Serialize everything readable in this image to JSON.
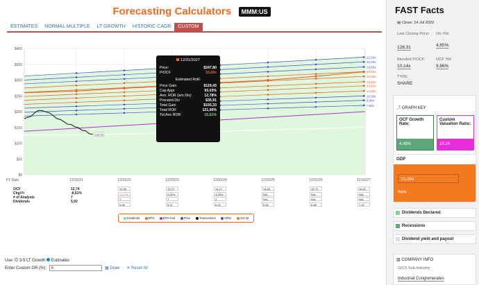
{
  "header": {
    "title": "Forecasting Calculators",
    "ticker": "MMM:US"
  },
  "tabs": [
    "ESTIMATES",
    "NORMAL MULTIPLE",
    "LT GROWTH",
    "HISTORIC CAGR",
    "CUSTOM"
  ],
  "active_tab": "CUSTOM",
  "chart_data": {
    "type": "area",
    "y_ticks": [
      "$400",
      "$350",
      "$300",
      "$250",
      "$200",
      "$150",
      "$100",
      "$50",
      "$0"
    ],
    "ylim": [
      0,
      400
    ],
    "x_ticks": [
      "FY Date",
      "12/31/21",
      "12/31/22",
      "12/31/23",
      "12/31/24",
      "12/31/25",
      "12/31/26",
      "12/31/27"
    ],
    "right_labels": [
      "22,50x",
      "21,00x",
      "19,50x",
      "18,00x",
      "16,50x",
      "15,00x",
      "13,50x",
      "12,00x",
      "10,50x",
      "9,00x",
      "7,50x"
    ],
    "right_colors": [
      "#3a4fd6",
      "#3a4fd6",
      "#3a4fd6",
      "#e85c1e",
      "#e85c1e",
      "#e85c1e",
      "#e85c1e",
      "#e85c1e",
      "#3a4fd6",
      "#3a4fd6",
      "#3a4fd6"
    ],
    "current_price_label": "128.31",
    "band_start": [
      313,
      300,
      288,
      275,
      261,
      248,
      236,
      223,
      211,
      198,
      186
    ],
    "band_end": [
      373,
      358,
      342,
      327,
      312,
      295,
      282,
      266,
      250,
      236,
      220
    ],
    "band_fills": [
      "#dff7dc",
      "#c9f3c3",
      "#b3edaa",
      "#ffe0cf",
      "#ffd0b8",
      "#5aa879",
      "#5aa879",
      "#5aa879",
      "#5aa879",
      "#5aa879",
      "#5aa879"
    ],
    "orange_line": [
      265,
      274,
      282,
      292,
      300,
      312,
      326
    ],
    "price": [
      178,
      182,
      186,
      198,
      204,
      203,
      199,
      196,
      187,
      178,
      175,
      168,
      160,
      159,
      152,
      149,
      141,
      139,
      130,
      128
    ],
    "dividends": [
      126,
      129,
      133,
      138,
      142,
      146,
      151
    ]
  },
  "table": {
    "rows": [
      "OCF",
      "Chg/Yr",
      "# of Analysts",
      "Dividends"
    ],
    "cols": [
      [
        "12,74",
        "-8,61%",
        "7",
        "5,92"
      ],
      [
        "12.56",
        "-1,17%",
        "7",
        "5.96"
      ],
      [
        "13.72",
        "9,00%",
        "7",
        "6.22"
      ],
      [
        "14.27",
        "4,03%",
        "2",
        "6.24"
      ],
      [
        "14.65",
        "N/A",
        "N/A",
        "6.55"
      ],
      [
        "15.73",
        "N/A",
        "N/A",
        "6.88"
      ],
      [
        "16.52",
        "N/A",
        "N/A",
        "7.22"
      ]
    ]
  },
  "legend": [
    "Dividends",
    "EPS",
    "EPS-Ovd",
    "Price",
    "Transactions",
    "Other",
    "Cal Qt"
  ],
  "legend_colors": [
    "#7bd98b",
    "#f26b21",
    "#ad2bd6",
    "#3a4fd6",
    "#111111",
    "#3a4fd6",
    "#f26b21"
  ],
  "tooltip": {
    "date": "12/31/2027",
    "price_label": "Price:",
    "price": "$247,80",
    "pocf_label": "P/OCF",
    "pocf": "15,00x",
    "ror_header": "Estimated RoR:",
    "rows": [
      [
        "Price Gain",
        "$119,43"
      ],
      [
        "Cap Appr",
        "93,03%"
      ],
      [
        "Ann. ROR (w/o Div)",
        "12,78%"
      ],
      [
        "Prorated Div",
        "$35,91"
      ],
      [
        "Total Gain",
        "$155,33"
      ],
      [
        "Total ROR",
        "121,00%"
      ],
      [
        "Tot Ann ROR",
        "15,61%"
      ]
    ]
  },
  "controls": {
    "use_label": "Use:",
    "opt1": "3-5 LT Growth",
    "opt2": "Estimates",
    "custom_label": "Enter Custom GR (%):",
    "custom_value": "5",
    "draw": "Draw",
    "reset": "Reset All"
  },
  "sidebar": {
    "title": "FAST Facts",
    "close": "Close: 14 Jul 2022",
    "last_close_label": "Last Closing Price:",
    "last_close": "128.31",
    "div_yld_label": "Div Yld:",
    "div_yld": "4,65%",
    "blended_label": "Blended P/OCF:",
    "blended": "10,14x",
    "ocf_yld_label": "OCF Yld:",
    "ocf_yld": "9,86%",
    "type_label": "TYPE:",
    "type": "SHARE",
    "graph_key": "GRAPH KEY",
    "ocf_growth_label": "OCF Growth Rate:",
    "ocf_growth": "4,48%",
    "custom_val_label": "Custom Valuation Ratio:",
    "custom_val": "10.14",
    "gdf_label": "GDF",
    "gdf_value": "15,00x",
    "apply": "Apply",
    "keys": [
      "Dividends Declared",
      "Recessions",
      "Dividend yield and payout"
    ],
    "company_info": "COMPANY INFO",
    "gics_label": "GICS Sub-Industry:",
    "gics": "Industrial Conglomerates"
  }
}
